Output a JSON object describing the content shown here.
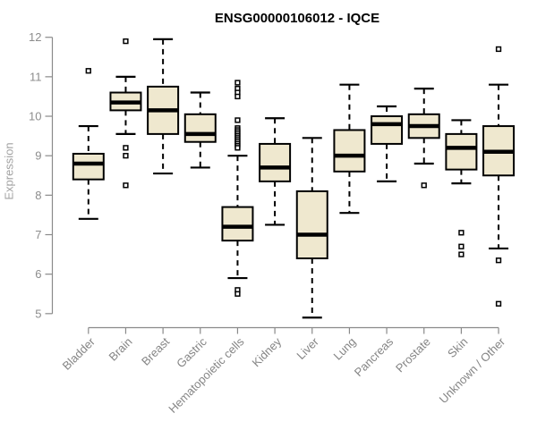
{
  "title": "ENSG00000106012 - IQCE",
  "y_axis": {
    "label": "Expression"
  },
  "colors": {
    "box_fill": "#efe8cf",
    "box_stroke": "#000000",
    "median": "#000000",
    "whisker": "#000000",
    "outlier_stroke": "#000000",
    "axis_line": "#8a8a8a",
    "y_tick_label": "#8c8c8c",
    "category_label": "#858585",
    "title_color": "#000000"
  },
  "chart_data": {
    "type": "boxplot",
    "title": "ENSG00000106012 - IQCE",
    "xlabel": "",
    "ylabel": "Expression",
    "ylim": [
      5,
      12
    ],
    "y_ticks": [
      5,
      6,
      7,
      8,
      9,
      10,
      11,
      12
    ],
    "grid": false,
    "legend": false,
    "categories": [
      "Bladder",
      "Brain",
      "Breast",
      "Gastric",
      "Hematopoietic cells",
      "Kidney",
      "Liver",
      "Lung",
      "Pancreas",
      "Prostate",
      "Skin",
      "Unknown / Other"
    ],
    "series": [
      {
        "name": "Bladder",
        "whisker_low": 7.4,
        "q1": 8.4,
        "median": 8.8,
        "q3": 9.05,
        "whisker_high": 9.75,
        "outliers": [
          11.15
        ]
      },
      {
        "name": "Brain",
        "whisker_low": 9.55,
        "q1": 10.15,
        "median": 10.35,
        "q3": 10.6,
        "whisker_high": 11.0,
        "outliers": [
          11.9,
          9.2,
          9.0,
          8.25
        ]
      },
      {
        "name": "Breast",
        "whisker_low": 8.55,
        "q1": 9.55,
        "median": 10.15,
        "q3": 10.75,
        "whisker_high": 11.95,
        "outliers": []
      },
      {
        "name": "Gastric",
        "whisker_low": 8.7,
        "q1": 9.35,
        "median": 9.55,
        "q3": 10.05,
        "whisker_high": 10.6,
        "outliers": []
      },
      {
        "name": "Hematopoietic cells",
        "whisker_low": 5.9,
        "q1": 6.85,
        "median": 7.2,
        "q3": 7.7,
        "whisker_high": 9.0,
        "outliers": [
          10.85,
          10.7,
          10.6,
          10.5,
          9.9,
          9.7,
          9.65,
          9.6,
          9.55,
          9.5,
          9.45,
          9.4,
          9.35,
          9.3,
          9.25,
          9.2,
          5.6,
          5.5
        ]
      },
      {
        "name": "Kidney",
        "whisker_low": 7.25,
        "q1": 8.35,
        "median": 8.7,
        "q3": 9.3,
        "whisker_high": 9.95,
        "outliers": []
      },
      {
        "name": "Liver",
        "whisker_low": 4.9,
        "q1": 6.4,
        "median": 7.0,
        "q3": 8.1,
        "whisker_high": 9.45,
        "outliers": []
      },
      {
        "name": "Lung",
        "whisker_low": 7.55,
        "q1": 8.6,
        "median": 9.0,
        "q3": 9.65,
        "whisker_high": 10.8,
        "outliers": []
      },
      {
        "name": "Pancreas",
        "whisker_low": 8.35,
        "q1": 9.3,
        "median": 9.8,
        "q3": 10.0,
        "whisker_high": 10.25,
        "outliers": []
      },
      {
        "name": "Prostate",
        "whisker_low": 8.8,
        "q1": 9.45,
        "median": 9.75,
        "q3": 10.05,
        "whisker_high": 10.7,
        "outliers": [
          8.25
        ]
      },
      {
        "name": "Skin",
        "whisker_low": 8.3,
        "q1": 8.65,
        "median": 9.2,
        "q3": 9.55,
        "whisker_high": 9.9,
        "outliers": [
          7.05,
          6.7,
          6.5
        ]
      },
      {
        "name": "Unknown / Other",
        "whisker_low": 6.65,
        "q1": 8.5,
        "median": 9.1,
        "q3": 9.75,
        "whisker_high": 10.8,
        "outliers": [
          11.7,
          6.35,
          5.25
        ]
      }
    ]
  }
}
